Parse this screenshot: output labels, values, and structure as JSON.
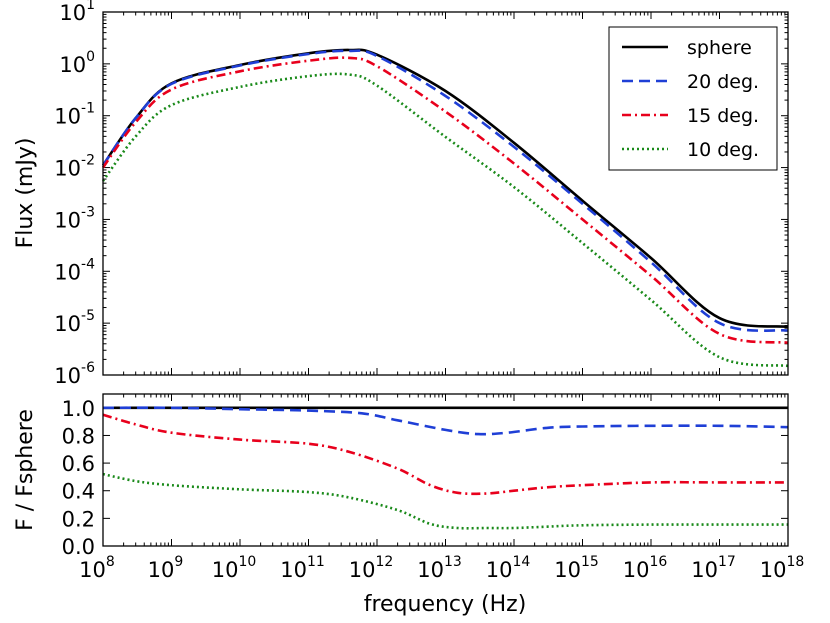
{
  "chart_data": [
    {
      "type": "line",
      "panel": "top",
      "xscale": "log",
      "yscale": "log",
      "xlim": [
        100000000.0,
        1e+18
      ],
      "ylim": [
        1e-06,
        10
      ],
      "xlabel": "",
      "ylabel": "Flux (mJy)",
      "ytick_labels": [
        {
          "base": "10",
          "exp": "-6"
        },
        {
          "base": "10",
          "exp": "-5"
        },
        {
          "base": "10",
          "exp": "-4"
        },
        {
          "base": "10",
          "exp": "-3"
        },
        {
          "base": "10",
          "exp": "-2"
        },
        {
          "base": "10",
          "exp": "-1"
        },
        {
          "base": "10",
          "exp": "0"
        },
        {
          "base": "10",
          "exp": "1"
        }
      ],
      "legend_position": "top-right",
      "series": [
        {
          "name": "sphere",
          "color": "#000000",
          "style": "solid",
          "x": [
            100000000.0,
            300000000.0,
            1000000000.0,
            10000000000.0,
            100000000000.0,
            400000000000.0,
            1000000000000.0,
            10000000000000.0,
            100000000000000.0,
            1000000000000000.0,
            1e+16,
            1e+17,
            1e+18
          ],
          "y": [
            0.011,
            0.09,
            0.42,
            0.95,
            1.6,
            1.85,
            1.5,
            0.3,
            0.03,
            0.0023,
            0.00018,
            1.25e-05,
            8.5e-06
          ]
        },
        {
          "name": "20 deg.",
          "color": "#1f3fd6",
          "style": "dashed",
          "x": [
            100000000.0,
            300000000.0,
            1000000000.0,
            10000000000.0,
            100000000000.0,
            400000000000.0,
            1000000000000.0,
            10000000000000.0,
            100000000000000.0,
            1000000000000000.0,
            1e+16,
            1e+17,
            1e+18
          ],
          "y": [
            0.011,
            0.09,
            0.41,
            0.93,
            1.55,
            1.78,
            1.42,
            0.24,
            0.025,
            0.002,
            0.00015,
            1e-05,
            7.2e-06
          ]
        },
        {
          "name": "15 deg.",
          "color": "#e8001c",
          "style": "dashdot",
          "x": [
            100000000.0,
            300000000.0,
            1000000000.0,
            10000000000.0,
            100000000000.0,
            400000000000.0,
            1000000000000.0,
            10000000000000.0,
            100000000000000.0,
            1000000000000000.0,
            1e+16,
            1e+17,
            1e+18
          ],
          "y": [
            0.01,
            0.075,
            0.32,
            0.72,
            1.15,
            1.3,
            0.9,
            0.12,
            0.012,
            0.001,
            8.2e-05,
            6.2e-06,
            4.2e-06
          ]
        },
        {
          "name": "10 deg.",
          "color": "#1a8a1a",
          "style": "dotted",
          "x": [
            100000000.0,
            300000000.0,
            1000000000.0,
            10000000000.0,
            100000000000.0,
            400000000000.0,
            1000000000000.0,
            10000000000000.0,
            100000000000000.0,
            1000000000000000.0,
            1e+16,
            1e+17,
            1e+18
          ],
          "y": [
            0.0055,
            0.04,
            0.16,
            0.36,
            0.58,
            0.62,
            0.38,
            0.039,
            0.0042,
            0.00035,
            2.8e-05,
            2.2e-06,
            1.5e-06
          ]
        }
      ]
    },
    {
      "type": "line",
      "panel": "bottom",
      "xscale": "log",
      "yscale": "linear",
      "xlim": [
        100000000.0,
        1e+18
      ],
      "ylim": [
        0.0,
        1.1
      ],
      "xlabel": "frequency (Hz)",
      "ylabel": "F / Fsphere",
      "ytick_labels": [
        "0.0",
        "0.2",
        "0.4",
        "0.6",
        "0.8",
        "1.0"
      ],
      "xtick_labels": [
        {
          "base": "10",
          "exp": "8"
        },
        {
          "base": "10",
          "exp": "9"
        },
        {
          "base": "10",
          "exp": "10"
        },
        {
          "base": "10",
          "exp": "11"
        },
        {
          "base": "10",
          "exp": "12"
        },
        {
          "base": "10",
          "exp": "13"
        },
        {
          "base": "10",
          "exp": "14"
        },
        {
          "base": "10",
          "exp": "15"
        },
        {
          "base": "10",
          "exp": "16"
        },
        {
          "base": "10",
          "exp": "17"
        },
        {
          "base": "10",
          "exp": "18"
        }
      ],
      "series": [
        {
          "name": "sphere",
          "color": "#000000",
          "style": "solid",
          "x": [
            100000000.0,
            1e+18
          ],
          "y": [
            1.0,
            1.0
          ]
        },
        {
          "name": "20 deg.",
          "color": "#1f3fd6",
          "style": "dashed",
          "x": [
            100000000.0,
            1000000000.0,
            10000000000.0,
            100000000000.0,
            600000000000.0,
            2000000000000.0,
            10000000000000.0,
            30000000000000.0,
            80000000000000.0,
            300000000000000.0,
            1000000000000000.0,
            1e+16,
            1e+17,
            1e+18
          ],
          "y": [
            1.0,
            1.0,
            0.99,
            0.98,
            0.96,
            0.91,
            0.84,
            0.81,
            0.82,
            0.855,
            0.865,
            0.87,
            0.87,
            0.86
          ]
        },
        {
          "name": "15 deg.",
          "color": "#e8001c",
          "style": "dashdot",
          "x": [
            100000000.0,
            300000000.0,
            1000000000.0,
            10000000000.0,
            100000000000.0,
            400000000000.0,
            2000000000000.0,
            6000000000000.0,
            15000000000000.0,
            40000000000000.0,
            100000000000000.0,
            300000000000000.0,
            1000000000000000.0,
            1e+16,
            1e+17,
            1e+18
          ],
          "y": [
            0.95,
            0.88,
            0.82,
            0.77,
            0.74,
            0.68,
            0.56,
            0.44,
            0.385,
            0.38,
            0.4,
            0.425,
            0.44,
            0.46,
            0.46,
            0.46
          ]
        },
        {
          "name": "10 deg.",
          "color": "#1a8a1a",
          "style": "dotted",
          "x": [
            100000000.0,
            300000000.0,
            1000000000.0,
            10000000000.0,
            100000000000.0,
            400000000000.0,
            2000000000000.0,
            6000000000000.0,
            15000000000000.0,
            40000000000000.0,
            100000000000000.0,
            300000000000000.0,
            1000000000000000.0,
            1e+16,
            1e+17,
            1e+18
          ],
          "y": [
            0.52,
            0.47,
            0.44,
            0.41,
            0.39,
            0.35,
            0.26,
            0.16,
            0.13,
            0.13,
            0.13,
            0.14,
            0.15,
            0.155,
            0.155,
            0.155
          ]
        }
      ]
    }
  ]
}
